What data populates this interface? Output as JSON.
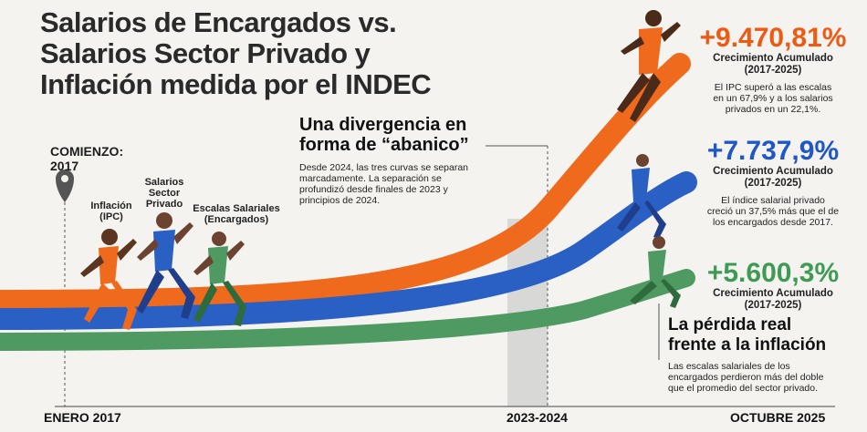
{
  "title_lines": [
    "Salarios de Encargados vs.",
    "Salarios Sector Privado y",
    "Inflación medida por el INDEC"
  ],
  "chart_data": {
    "type": "line",
    "x_labels": [
      "ENERO 2017",
      "2023-2024",
      "OCTUBRE 2025"
    ],
    "series": [
      {
        "name": "Inflación (IPC)",
        "color": "#f06a1d",
        "final_growth_pct": 9470.81,
        "final_label": "+9.470,81%"
      },
      {
        "name": "Salarios Sector Privado",
        "color": "#2a5fc4",
        "final_growth_pct": 7737.9,
        "final_label": "+7.737,9%"
      },
      {
        "name": "Escalas Salariales (Encargados)",
        "color": "#4e9a62",
        "final_growth_pct": 5600.3,
        "final_label": "+5.600,3%"
      }
    ]
  },
  "start": {
    "label": "COMIENZO:",
    "year": "2017"
  },
  "runner_labels": {
    "ipc": [
      "Inflación",
      "(IPC)"
    ],
    "privado": [
      "Salarios",
      "Sector",
      "Privado"
    ],
    "encargados": [
      "Escalas Salariales",
      "(Encargados)"
    ]
  },
  "divergence": {
    "heading": [
      "Una divergencia en",
      "forma de “abanico”"
    ],
    "text": [
      "Desde 2024, las tres curvas se separan",
      "marcadamente. La separación se",
      "profundizó desde finales de 2023 y",
      "principios de 2024."
    ]
  },
  "ipc_box": {
    "pct": "+9.470,81%",
    "sub": [
      "Crecimiento Acumulado",
      "(2017-2025)"
    ],
    "note": [
      "El IPC superó a las escalas",
      "en un 67,9% y a los salarios",
      "privados en un 22,1%."
    ]
  },
  "privado_box": {
    "pct": "+7.737,9%",
    "sub": [
      "Crecimiento Acumulado",
      "(2017-2025)"
    ],
    "note": [
      "El índice salarial privado",
      "creció un 37,5% más que el de",
      "los encargados desde 2017."
    ]
  },
  "encargados_box": {
    "pct": "+5.600,3%",
    "sub": [
      "Crecimiento Acumulado",
      "(2017-2025)"
    ]
  },
  "loss": {
    "heading": [
      "La pérdida real",
      "frente a la inflación"
    ],
    "text": [
      "Las escalas salariales de los",
      "encargados perdieron más del doble",
      "que el promedio del sector privado."
    ]
  },
  "colors": {
    "orange": "#f06a1d",
    "blue": "#2a5fc4",
    "green": "#4e9a62",
    "pct_orange": "#ef5a12",
    "pct_blue": "#1f57c8",
    "pct_green": "#3f9a55"
  }
}
